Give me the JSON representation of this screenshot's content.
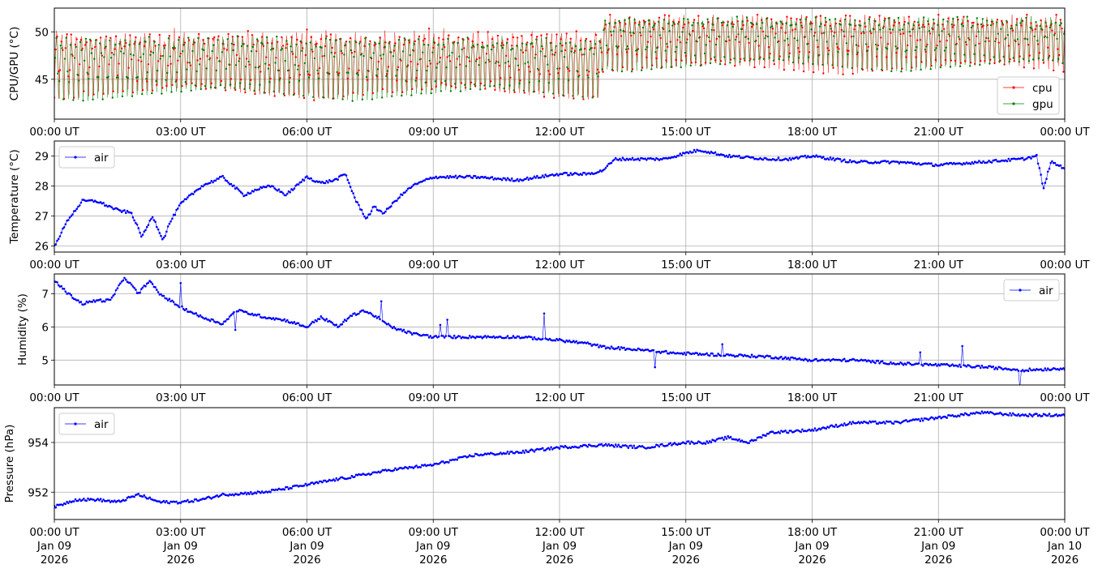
{
  "chart_data": [
    {
      "type": "line",
      "ylabel": "CPU/GPU (°C)",
      "ylim": [
        40.8,
        52.5
      ],
      "yticks": [
        45,
        50
      ],
      "legend": "bottom-right",
      "grid": true,
      "series": [
        {
          "name": "cpu",
          "color": "#ff0000",
          "level_min": 41.7,
          "level_max": 50.0,
          "late_min": 44.5,
          "late_max": 51.7
        },
        {
          "name": "gpu",
          "color": "#008000",
          "level_min": 42.0,
          "level_max": 50.0,
          "late_min": 45.2,
          "late_max": 52.0
        }
      ]
    },
    {
      "type": "line",
      "ylabel": "Temperature (°C)",
      "ylim": [
        25.8,
        29.5
      ],
      "yticks": [
        26,
        27,
        28,
        29
      ],
      "legend": "top-left",
      "grid": true,
      "series": [
        {
          "name": "air",
          "color": "#0000ff",
          "x": [
            "00:00",
            "00:20",
            "00:40",
            "01:00",
            "01:30",
            "01:50",
            "02:05",
            "02:20",
            "02:35",
            "02:45",
            "03:00",
            "03:30",
            "04:00",
            "04:30",
            "04:50",
            "05:10",
            "05:30",
            "05:45",
            "06:00",
            "06:20",
            "06:40",
            "06:55",
            "07:10",
            "07:25",
            "07:35",
            "07:50",
            "08:10",
            "08:30",
            "09:00",
            "10:00",
            "11:00",
            "12:00",
            "12:40",
            "13:00",
            "13:20",
            "14:00",
            "14:30",
            "15:00",
            "15:20",
            "16:00",
            "17:00",
            "17:30",
            "18:00",
            "19:00",
            "20:00",
            "21:00",
            "22:00",
            "23:00",
            "23:20",
            "23:30",
            "23:40",
            "24:00"
          ],
          "y": [
            26.0,
            26.9,
            27.5,
            27.5,
            27.2,
            27.1,
            26.3,
            27.0,
            26.2,
            26.8,
            27.4,
            28.0,
            28.3,
            27.7,
            27.9,
            28.0,
            27.7,
            28.0,
            28.3,
            28.1,
            28.2,
            28.4,
            27.5,
            26.9,
            27.3,
            27.1,
            27.6,
            28.0,
            28.3,
            28.3,
            28.2,
            28.4,
            28.4,
            28.5,
            28.9,
            28.9,
            28.9,
            29.1,
            29.2,
            29.0,
            28.9,
            28.9,
            29.0,
            28.8,
            28.8,
            28.7,
            28.8,
            28.9,
            29.0,
            27.9,
            28.8,
            28.6
          ]
        }
      ]
    },
    {
      "type": "line",
      "ylabel": "Humidity (%)",
      "ylim": [
        4.25,
        7.6
      ],
      "yticks": [
        5,
        6,
        7
      ],
      "legend": "top-right",
      "grid": true,
      "series": [
        {
          "name": "air",
          "color": "#0000ff",
          "x": [
            "00:00",
            "00:20",
            "00:40",
            "01:00",
            "01:20",
            "01:40",
            "02:00",
            "02:15",
            "02:30",
            "03:00",
            "03:30",
            "04:00",
            "04:20",
            "05:00",
            "05:30",
            "06:00",
            "06:20",
            "06:45",
            "07:00",
            "07:20",
            "07:40",
            "08:00",
            "08:30",
            "09:00",
            "10:00",
            "11:00",
            "12:00",
            "12:40",
            "13:00",
            "14:00",
            "14:50",
            "15:00",
            "16:00",
            "17:00",
            "18:00",
            "19:00",
            "20:00",
            "21:00",
            "22:00",
            "23:00",
            "24:00"
          ],
          "y": [
            7.4,
            7.0,
            6.7,
            6.8,
            6.8,
            7.5,
            7.0,
            7.4,
            7.0,
            6.6,
            6.3,
            6.1,
            6.5,
            6.3,
            6.2,
            6.0,
            6.3,
            6.0,
            6.3,
            6.5,
            6.3,
            6.0,
            5.8,
            5.7,
            5.7,
            5.7,
            5.6,
            5.5,
            5.4,
            5.3,
            5.2,
            5.2,
            5.15,
            5.1,
            5.0,
            5.0,
            4.9,
            4.85,
            4.8,
            4.7,
            4.75
          ]
        }
      ]
    },
    {
      "type": "line",
      "ylabel": "Pressure (hPa)",
      "ylim": [
        950.9,
        955.4
      ],
      "yticks": [
        952,
        954
      ],
      "legend": "top-left",
      "grid": true,
      "series": [
        {
          "name": "air",
          "color": "#0000ff",
          "x": [
            "00:00",
            "00:30",
            "01:00",
            "01:30",
            "02:00",
            "02:30",
            "03:00",
            "03:30",
            "04:00",
            "05:00",
            "06:00",
            "07:00",
            "08:00",
            "09:00",
            "10:00",
            "11:00",
            "12:00",
            "13:00",
            "14:00",
            "15:00",
            "15:30",
            "16:00",
            "16:30",
            "17:00",
            "18:00",
            "19:00",
            "20:00",
            "21:00",
            "22:00",
            "23:00",
            "23:30",
            "24:00"
          ],
          "y": [
            951.4,
            951.7,
            951.7,
            951.6,
            951.9,
            951.6,
            951.6,
            951.7,
            951.9,
            952.0,
            952.3,
            952.6,
            952.9,
            953.1,
            953.5,
            953.6,
            953.8,
            953.9,
            953.8,
            954.0,
            954.0,
            954.2,
            954.0,
            954.4,
            954.5,
            954.8,
            954.8,
            955.0,
            955.2,
            955.1,
            955.1,
            955.1
          ]
        }
      ]
    }
  ],
  "x_tick_labels": [
    "00:00 UT",
    "03:00 UT",
    "06:00 UT",
    "09:00 UT",
    "12:00 UT",
    "15:00 UT",
    "18:00 UT",
    "21:00 UT",
    "00:00 UT"
  ],
  "x_date_lines_1": [
    "Jan 09",
    "Jan 09",
    "Jan 09",
    "Jan 09",
    "Jan 09",
    "Jan 09",
    "Jan 09",
    "Jan 09",
    "Jan 10"
  ],
  "x_date_lines_2": [
    "2026",
    "2026",
    "2026",
    "2026",
    "2026",
    "2026",
    "2026",
    "2026",
    "2026"
  ],
  "x_range": [
    "2026-01-09 00:00",
    "2026-01-10 00:00"
  ]
}
